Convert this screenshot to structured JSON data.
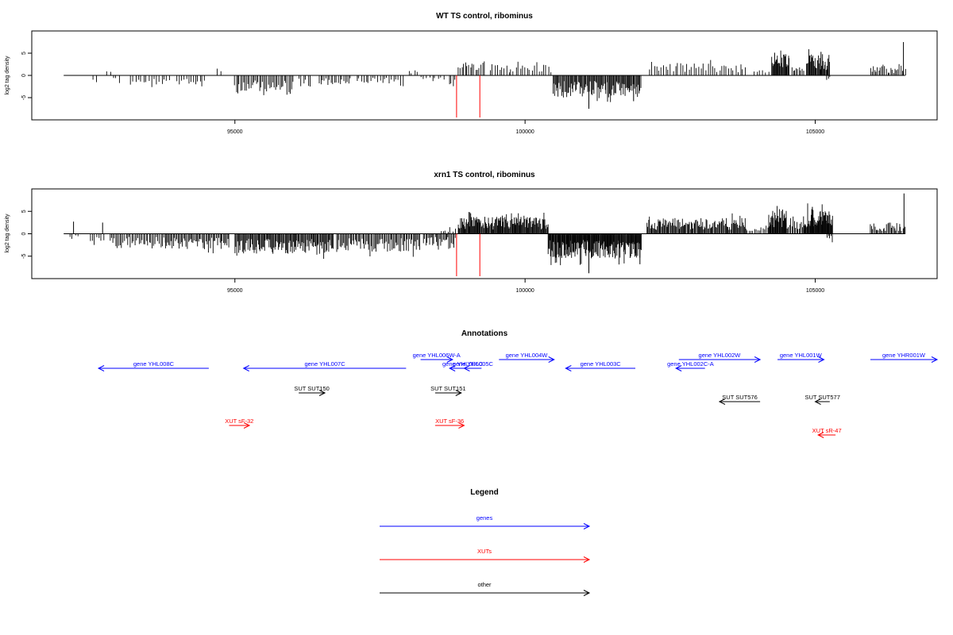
{
  "chart_data": [
    {
      "type": "bar",
      "title": "WT TS control, ribominus",
      "ylabel": "log2 tag density",
      "xlabel": "",
      "xlim": [
        91500,
        107100
      ],
      "ylim": [
        -10,
        10
      ],
      "x_ticks": [
        95000,
        100000,
        105000
      ],
      "x_tick_labels": [
        "95000",
        "100000",
        "105000"
      ],
      "y_ticks": [
        -5,
        0,
        5
      ],
      "y_tick_labels": [
        "-5",
        "0",
        "5"
      ],
      "baseline": {
        "from": 92050,
        "to": 106550,
        "color": "#000000"
      },
      "markers": {
        "positions": [
          98820,
          99220
        ],
        "color": "#ff0000"
      },
      "bar_color": "#000000",
      "regions": [
        {
          "from": 92550,
          "to": 92600,
          "sign": -1,
          "amp": 2.0,
          "step": 50
        },
        {
          "from": 92800,
          "to": 92850,
          "sign": 1,
          "amp": 1.0,
          "step": 50
        },
        {
          "from": 92900,
          "to": 93000,
          "sign": -1,
          "amp": 1.5,
          "step": 50
        },
        {
          "from": 93200,
          "to": 93900,
          "sign": -1,
          "amp": 2.6,
          "step": 45
        },
        {
          "from": 94000,
          "to": 94500,
          "sign": -1,
          "amp": 2.0,
          "step": 40
        },
        {
          "from": 94700,
          "to": 94760,
          "sign": 1,
          "amp": 1.7,
          "step": 50
        },
        {
          "from": 95000,
          "to": 96000,
          "sign": -1,
          "amp": 4.5,
          "step": 25
        },
        {
          "from": 96100,
          "to": 96300,
          "sign": -1,
          "amp": 2.8,
          "step": 40
        },
        {
          "from": 96450,
          "to": 97000,
          "sign": -1,
          "amp": 2.3,
          "step": 30
        },
        {
          "from": 97100,
          "to": 97900,
          "sign": -1,
          "amp": 2.0,
          "step": 40
        },
        {
          "from": 98000,
          "to": 98150,
          "sign": 1,
          "amp": 1.3,
          "step": 50
        },
        {
          "from": 98200,
          "to": 98600,
          "sign": -1,
          "amp": 1.5,
          "step": 50
        },
        {
          "from": 98700,
          "to": 98800,
          "sign": -1,
          "amp": 2.7,
          "step": 30
        },
        {
          "from": 98850,
          "to": 99300,
          "sign": 1,
          "amp": 3.0,
          "step": 30
        },
        {
          "from": 99400,
          "to": 100450,
          "sign": 1,
          "amp": 2.6,
          "step": 40
        },
        {
          "from": 100480,
          "to": 102000,
          "sign": -1,
          "amp": 5.0,
          "step": 15
        },
        {
          "from": 102150,
          "to": 103800,
          "sign": 1,
          "amp": 2.8,
          "step": 40
        },
        {
          "from": 103950,
          "to": 104200,
          "sign": 1,
          "amp": 1.2,
          "step": 50
        },
        {
          "from": 104250,
          "to": 104550,
          "sign": 1,
          "amp": 4.8,
          "step": 12
        },
        {
          "from": 104600,
          "to": 104800,
          "sign": 1,
          "amp": 2.0,
          "step": 25
        },
        {
          "from": 104850,
          "to": 105250,
          "sign": 1,
          "amp": 4.8,
          "step": 12
        },
        {
          "from": 105200,
          "to": 105250,
          "sign": -1,
          "amp": 1.2,
          "step": 25
        },
        {
          "from": 105950,
          "to": 106550,
          "sign": 1,
          "amp": 2.2,
          "step": 25
        }
      ],
      "spikes": [
        {
          "x": 104300,
          "y": 5.1
        },
        {
          "x": 105100,
          "y": 5.3
        },
        {
          "x": 106520,
          "y": 7.5
        },
        {
          "x": 101100,
          "y": -7.5
        },
        {
          "x": 101870,
          "y": -5.8
        }
      ]
    },
    {
      "type": "bar",
      "title": "xrn1 TS control, ribominus",
      "ylabel": "log2 tag density",
      "xlabel": "",
      "xlim": [
        91500,
        107100
      ],
      "ylim": [
        -10,
        10
      ],
      "x_ticks": [
        95000,
        100000,
        105000
      ],
      "x_tick_labels": [
        "95000",
        "100000",
        "105000"
      ],
      "y_ticks": [
        -5,
        0,
        5
      ],
      "y_tick_labels": [
        "-5",
        "0",
        "5"
      ],
      "baseline": {
        "from": 92050,
        "to": 106550,
        "color": "#000000"
      },
      "markers": {
        "positions": [
          98820,
          99220
        ],
        "color": "#ff0000"
      },
      "bar_color": "#000000",
      "regions": [
        {
          "from": 92150,
          "to": 92300,
          "sign": -1,
          "amp": 1.2,
          "step": 50
        },
        {
          "from": 92500,
          "to": 92750,
          "sign": -1,
          "amp": 2.0,
          "step": 40
        },
        {
          "from": 92850,
          "to": 93800,
          "sign": -1,
          "amp": 2.8,
          "step": 25
        },
        {
          "from": 93800,
          "to": 94900,
          "sign": -1,
          "amp": 3.5,
          "step": 20
        },
        {
          "from": 95000,
          "to": 96700,
          "sign": -1,
          "amp": 4.5,
          "step": 15
        },
        {
          "from": 96750,
          "to": 98200,
          "sign": -1,
          "amp": 4.0,
          "step": 20
        },
        {
          "from": 98250,
          "to": 98800,
          "sign": -1,
          "amp": 2.8,
          "step": 20
        },
        {
          "from": 98550,
          "to": 98800,
          "sign": 1,
          "amp": 1.5,
          "step": 40
        },
        {
          "from": 98850,
          "to": 100400,
          "sign": 1,
          "amp": 3.8,
          "step": 12
        },
        {
          "from": 100400,
          "to": 102000,
          "sign": -1,
          "amp": 5.5,
          "step": 10
        },
        {
          "from": 102100,
          "to": 103800,
          "sign": 1,
          "amp": 3.5,
          "step": 15
        },
        {
          "from": 103800,
          "to": 104200,
          "sign": 1,
          "amp": 1.5,
          "step": 30
        },
        {
          "from": 104200,
          "to": 104500,
          "sign": 1,
          "amp": 5.5,
          "step": 10
        },
        {
          "from": 104500,
          "to": 104800,
          "sign": 1,
          "amp": 3.0,
          "step": 20
        },
        {
          "from": 104800,
          "to": 105300,
          "sign": 1,
          "amp": 5.5,
          "step": 10
        },
        {
          "from": 105200,
          "to": 105300,
          "sign": -1,
          "amp": 1.5,
          "step": 25
        },
        {
          "from": 105950,
          "to": 106550,
          "sign": 1,
          "amp": 2.5,
          "step": 20
        }
      ],
      "spikes": [
        {
          "x": 92220,
          "y": 2.7
        },
        {
          "x": 92720,
          "y": 2.5
        },
        {
          "x": 101100,
          "y": -8.8
        },
        {
          "x": 101980,
          "y": -6.8
        },
        {
          "x": 104950,
          "y": 6.0
        },
        {
          "x": 106530,
          "y": 9.0
        }
      ]
    }
  ],
  "annotations": {
    "title": "Annotations",
    "features": [
      {
        "label": "gene YHL008C",
        "from": 94550,
        "to": 92650,
        "row": 1,
        "color": "#0000ff"
      },
      {
        "label": "gene YHL007C",
        "from": 97950,
        "to": 95150,
        "row": 1,
        "color": "#0000ff"
      },
      {
        "label": "gene YHL006W-A",
        "from": 98200,
        "to": 98750,
        "row": 0,
        "color": "#0000ff"
      },
      {
        "label": "gene YHL006C",
        "from": 99150,
        "to": 98700,
        "row": 1,
        "color": "#0000ff"
      },
      {
        "label": "gene YHL005C",
        "from": 99250,
        "to": 98950,
        "row": 1,
        "color": "#0000ff"
      },
      {
        "label": "gene YHL004W",
        "from": 99550,
        "to": 100500,
        "row": 0,
        "color": "#0000ff"
      },
      {
        "label": "gene YHL003C",
        "from": 101900,
        "to": 100700,
        "row": 1,
        "color": "#0000ff"
      },
      {
        "label": "gene YHL002W",
        "from": 102650,
        "to": 104050,
        "row": 0,
        "color": "#0000ff"
      },
      {
        "label": "gene YHL002C-A",
        "from": 103100,
        "to": 102600,
        "row": 1,
        "color": "#0000ff"
      },
      {
        "label": "gene YHL001W",
        "from": 104350,
        "to": 105150,
        "row": 0,
        "color": "#0000ff"
      },
      {
        "label": "gene YHR001W",
        "from": 105950,
        "to": 107100,
        "row": 0,
        "color": "#0000ff"
      },
      {
        "label": "SUT SUT150",
        "from": 96100,
        "to": 96550,
        "row": 2,
        "color": "#000000"
      },
      {
        "label": "SUT SUT151",
        "from": 98450,
        "to": 98900,
        "row": 2,
        "color": "#000000"
      },
      {
        "label": "SUT SUT576",
        "from": 104050,
        "to": 103350,
        "row": 3,
        "color": "#000000"
      },
      {
        "label": "SUT SUT577",
        "from": 105250,
        "to": 105000,
        "row": 3,
        "color": "#000000"
      },
      {
        "label": "XUT sF-32",
        "from": 94900,
        "to": 95250,
        "row": 4,
        "color": "#ff0000"
      },
      {
        "label": "XUT sF-36",
        "from": 98450,
        "to": 98950,
        "row": 4,
        "color": "#ff0000"
      },
      {
        "label": "XUT sR-47",
        "from": 105350,
        "to": 105050,
        "row": 5,
        "color": "#ff0000"
      }
    ]
  },
  "legend": {
    "title": "Legend",
    "items": [
      {
        "label": "genes",
        "color": "#0000ff"
      },
      {
        "label": "XUTs",
        "color": "#ff0000"
      },
      {
        "label": "other",
        "color": "#000000"
      }
    ]
  }
}
